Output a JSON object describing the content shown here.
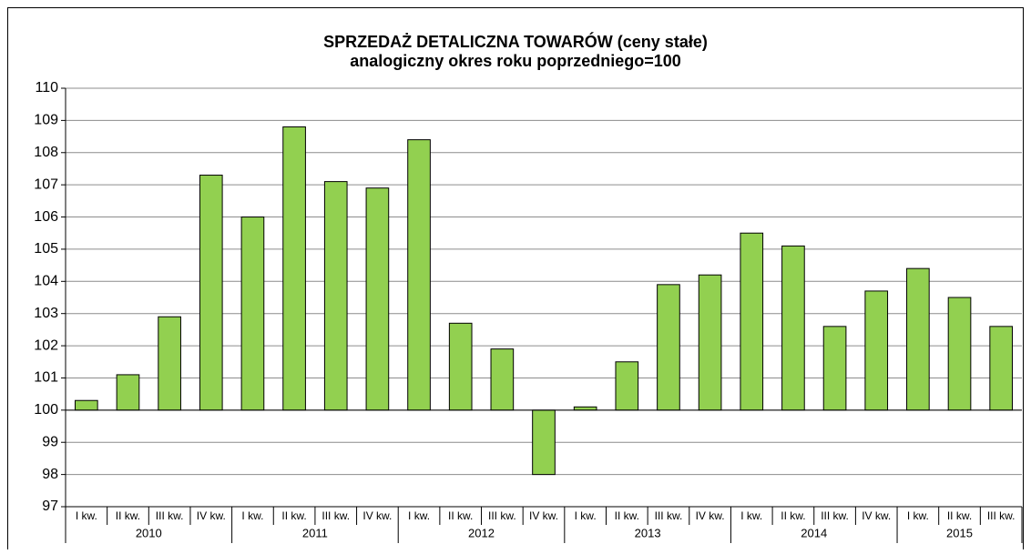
{
  "chart_data": {
    "type": "bar",
    "title": "SPRZEDAŻ DETALICZNA TOWARÓW (ceny stałe)",
    "subtitle": "analogiczny okres roku poprzedniego=100",
    "groups": [
      {
        "name": "2010",
        "categories": [
          "I kw.",
          "II kw.",
          "III kw.",
          "IV kw."
        ]
      },
      {
        "name": "2011",
        "categories": [
          "I kw.",
          "II kw.",
          "III kw.",
          "IV kw."
        ]
      },
      {
        "name": "2012",
        "categories": [
          "I kw.",
          "II kw.",
          "III kw.",
          "IV kw."
        ]
      },
      {
        "name": "2013",
        "categories": [
          "I kw.",
          "II kw.",
          "III kw.",
          "IV kw."
        ]
      },
      {
        "name": "2014",
        "categories": [
          "I kw.",
          "II kw.",
          "III kw.",
          "IV kw."
        ]
      },
      {
        "name": "2015",
        "categories": [
          "I kw.",
          "II kw.",
          "III kw."
        ]
      }
    ],
    "values": [
      100.3,
      101.1,
      102.9,
      107.3,
      106.0,
      108.8,
      107.1,
      106.9,
      108.4,
      102.7,
      101.9,
      98.0,
      100.1,
      101.5,
      103.9,
      104.2,
      105.5,
      105.1,
      102.6,
      103.7,
      104.4,
      103.5,
      102.6
    ],
    "color": "#92d050",
    "baseline": 100,
    "ylim": [
      97,
      110
    ],
    "yticks": [
      97,
      98,
      99,
      100,
      101,
      102,
      103,
      104,
      105,
      106,
      107,
      108,
      109,
      110
    ],
    "grid": true
  }
}
